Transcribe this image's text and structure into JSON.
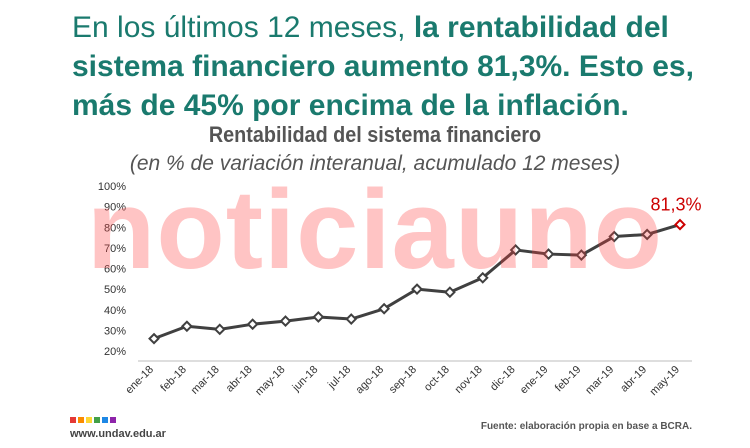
{
  "headline": {
    "normal": "En los últimos 12 meses, ",
    "bold": "la rentabilidad del sistema financiero aumento 81,3%. Esto es, más de 45% por encima de la inflación."
  },
  "watermark": "noticiauno",
  "footer": {
    "site": "www.undav.edu.ar",
    "source": "Fuente: elaboración propia en base a BCRA.",
    "logo_colors": [
      "#e53935",
      "#fb8c00",
      "#fdd835",
      "#43a047",
      "#1e88e5",
      "#8e24aa"
    ]
  },
  "chart_data": {
    "type": "line",
    "title": "Rentabilidad del sistema financiero",
    "subtitle": "(en % de variación interanual, acumulado 12 meses)",
    "categories": [
      "ene-18",
      "feb-18",
      "mar-18",
      "abr-18",
      "may-18",
      "jun-18",
      "jul-18",
      "ago-18",
      "sep-18",
      "oct-18",
      "nov-18",
      "dic-18",
      "ene-19",
      "feb-19",
      "mar-19",
      "abr-19",
      "may-19"
    ],
    "values": [
      26,
      32,
      30.5,
      33,
      34.5,
      36.5,
      35.5,
      40.5,
      50,
      48.5,
      55.5,
      69,
      67,
      66.5,
      75.5,
      76.5,
      81.3
    ],
    "ylim": [
      20,
      100
    ],
    "yticks": [
      "20%",
      "30%",
      "40%",
      "50%",
      "60%",
      "70%",
      "80%",
      "90%",
      "100%"
    ],
    "annotations": [
      {
        "index": 16,
        "text": "81,3%"
      }
    ],
    "line_color": "#404040",
    "marker_color": "#404040",
    "highlight_color": "#cc0000",
    "grid": false
  }
}
